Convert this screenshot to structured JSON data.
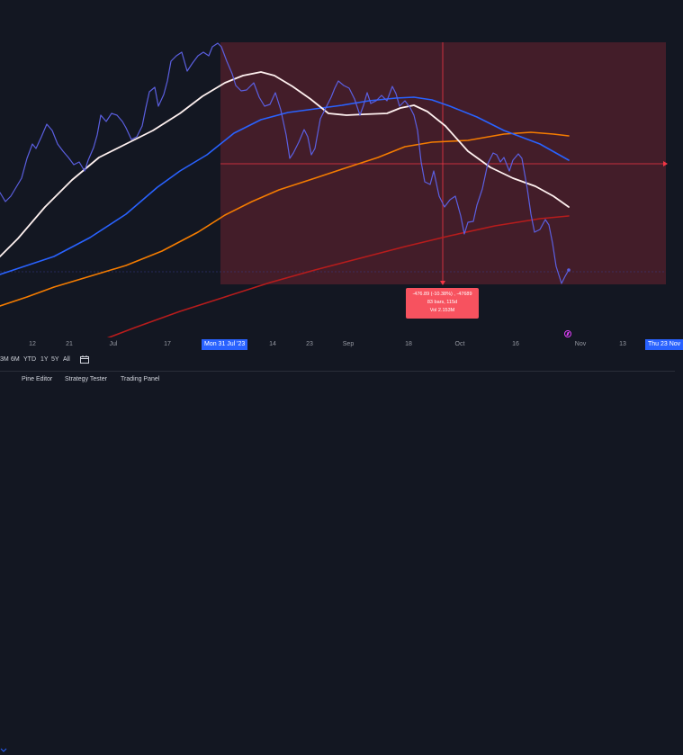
{
  "chart": {
    "colors": {
      "background": "#131722",
      "price_line": "#5b5fe0",
      "ema_white": "#fff1f0",
      "ema_blue": "#2962ff",
      "ema_orange": "#f57c00",
      "ema_red": "#b71c1c",
      "measure_fill": "rgba(242,54,69,0.22)",
      "measure_line": "#f23645",
      "time_flag": "#2962ff"
    }
  },
  "measure": {
    "line1": "-476.89 (-10.38%) , -47689",
    "line2": "83 bars, 115d",
    "line3": "Vol 2.153M"
  },
  "time_axis": {
    "ticks": [
      {
        "label": "12"
      },
      {
        "label": "21"
      },
      {
        "label": "Jul"
      },
      {
        "label": "17"
      },
      {
        "label": "14"
      },
      {
        "label": "23"
      },
      {
        "label": "Sep"
      },
      {
        "label": "18"
      },
      {
        "label": "Oct"
      },
      {
        "label": "16"
      },
      {
        "label": "Nov"
      },
      {
        "label": "13"
      }
    ],
    "start_flag": "Mon 31 Jul '23",
    "end_flag": "Thu 23 Nov"
  },
  "range_buttons": [
    "3M",
    "6M",
    "YTD",
    "1Y",
    "5Y",
    "All"
  ],
  "bottom_tabs": [
    "Pine Editor",
    "Strategy Tester",
    "Trading Panel"
  ],
  "icons": {
    "calendar": "calendar-icon",
    "flash": "flash-icon",
    "arrow": "chevron-down-icon"
  }
}
